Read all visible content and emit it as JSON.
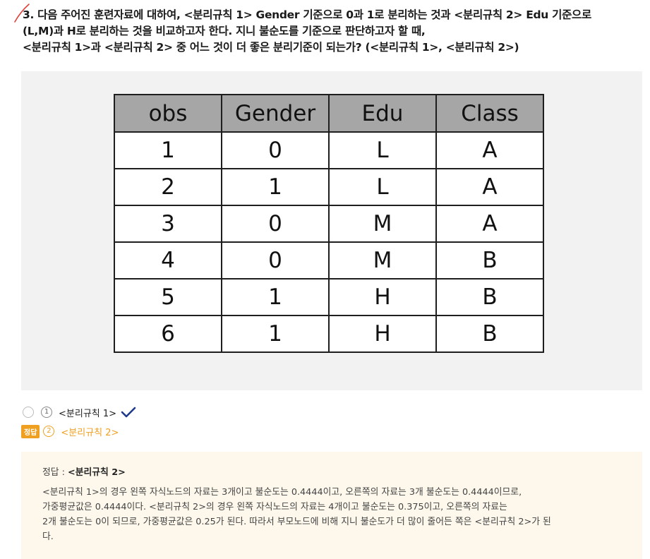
{
  "question": {
    "lines": [
      "3. 다음 주어진 훈련자료에 대하여, <분리규칙 1> Gender 기준으로 0과 1로 분리하는 것과 <분리규칙 2> Edu 기준으로",
      "(L,M)과 H로 분리하는 것을 비교하고자 한다. 지니 불순도를 기준으로 판단하고자 할 때,",
      "<분리규칙 1>과 <분리규칙 2> 중 어느 것이 더 좋은 분리기준이 되는가? (<분리규칙 1>, <분리규칙 2>)"
    ]
  },
  "table": {
    "headers": [
      "obs",
      "Gender",
      "Edu",
      "Class"
    ],
    "rows": [
      [
        "1",
        "0",
        "L",
        "A"
      ],
      [
        "2",
        "1",
        "L",
        "A"
      ],
      [
        "3",
        "0",
        "M",
        "A"
      ],
      [
        "4",
        "0",
        "M",
        "B"
      ],
      [
        "5",
        "1",
        "H",
        "B"
      ],
      [
        "6",
        "1",
        "H",
        "B"
      ]
    ]
  },
  "options": [
    {
      "number": "1",
      "label": "<분리규칙 1>"
    },
    {
      "number": "2",
      "label": "<분리규칙 2>",
      "badge": "정답"
    }
  ],
  "explanation": {
    "answer_prefix": "정답 : ",
    "answer_value": "<분리규칙 2>",
    "lines": [
      "<분리규칙 1>의 경우 왼쪽 자식노드의 자료는 3개이고 불순도는 0.4444이고, 오른쪽의 자료는 3개 불순도는 0.4444이므로,",
      "가중평균값은 0.4444이다. <분리규칙 2>의 경우 왼쪽 자식노드의 자료는 4개이고 불순도는 0.375이고, 오른쪽의 자료는",
      "2개 불순도는 0이 되므로, 가중평균값은 0.25가 된다. 따라서 부모노드에 비해 지니 불순도가 더 많이 줄어든 쪽은 <분리규칙 2>가 된",
      "다."
    ]
  },
  "colors": {
    "accent": "#f0a020",
    "check": "#1f3a8a",
    "pen": "#e0413a"
  }
}
